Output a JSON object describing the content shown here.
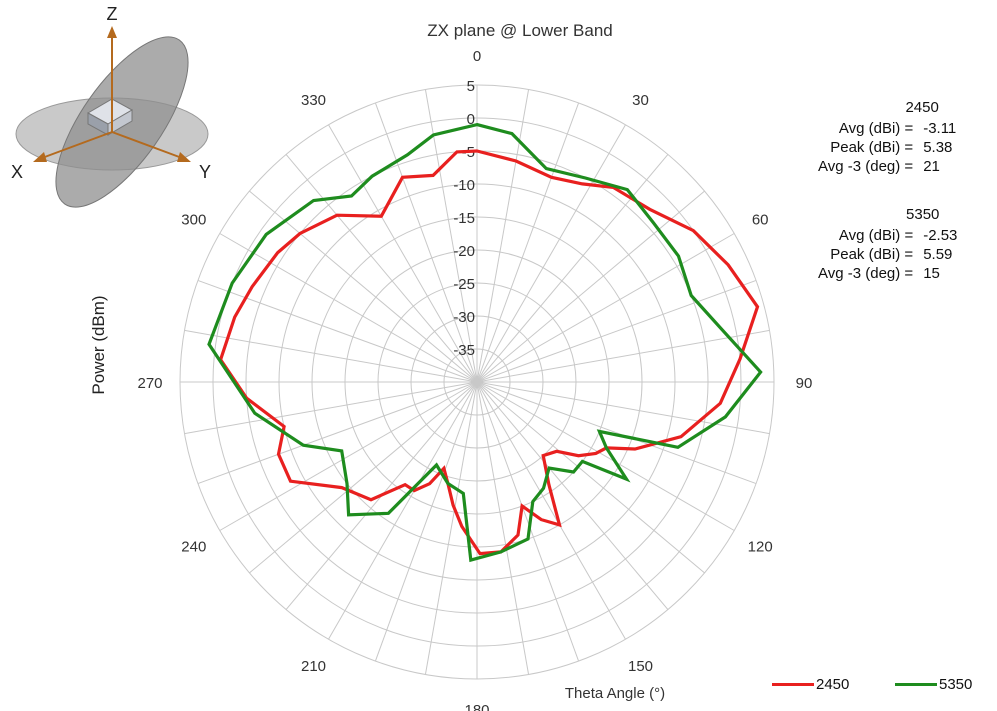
{
  "chart_data": {
    "type": "polar-line",
    "title": "ZX plane @ Lower Band",
    "radial_axis_label": "Power (dBm)",
    "angle_axis_label": "Theta  Angle (°)",
    "r_range": [
      -40,
      5
    ],
    "r_ticks": [
      -35,
      -30,
      -25,
      -20,
      -15,
      -10,
      -5,
      0,
      5
    ],
    "angle_ticks": [
      0,
      30,
      60,
      90,
      120,
      150,
      180,
      210,
      240,
      270,
      300,
      330
    ],
    "angle_direction": "clockwise",
    "zero_angle": "top",
    "legend_position": "bottom-right",
    "series": [
      {
        "name": "2450",
        "color": "#e8201f",
        "points": [
          [
            0,
            -5
          ],
          [
            10,
            -6
          ],
          [
            20,
            -7
          ],
          [
            28,
            -6
          ],
          [
            35,
            -4
          ],
          [
            45,
            -3
          ],
          [
            55,
            0
          ],
          [
            65,
            2
          ],
          [
            75,
            4
          ],
          [
            85,
            0
          ],
          [
            95,
            -3
          ],
          [
            105,
            -8
          ],
          [
            113,
            -14
          ],
          [
            117,
            -18
          ],
          [
            121,
            -19
          ],
          [
            126,
            -21
          ],
          [
            131,
            -24
          ],
          [
            138,
            -25
          ],
          [
            145,
            -21
          ],
          [
            150,
            -15
          ],
          [
            155,
            -17
          ],
          [
            160,
            -20
          ],
          [
            165,
            -16
          ],
          [
            172,
            -14
          ],
          [
            179,
            -14
          ],
          [
            186,
            -18
          ],
          [
            191,
            -21
          ],
          [
            196,
            -24
          ],
          [
            201,
            -26
          ],
          [
            205,
            -23
          ],
          [
            210,
            -21
          ],
          [
            215,
            -21
          ],
          [
            222,
            -16
          ],
          [
            232,
            -14
          ],
          [
            242,
            -8
          ],
          [
            250,
            -8
          ],
          [
            257,
            -10
          ],
          [
            266,
            -5
          ],
          [
            275,
            -1
          ],
          [
            285,
            -2
          ],
          [
            293,
            -3
          ],
          [
            303,
            -4
          ],
          [
            310,
            -5
          ],
          [
            320,
            -7
          ],
          [
            330,
            -11
          ],
          [
            340,
            -7
          ],
          [
            348,
            -8
          ],
          [
            355,
            -5
          ],
          [
            360,
            -5
          ]
        ]
      },
      {
        "name": "5350",
        "color": "#1e8c1e",
        "points": [
          [
            0,
            -1
          ],
          [
            8,
            -2
          ],
          [
            18,
            -6
          ],
          [
            28,
            -5
          ],
          [
            38,
            -3
          ],
          [
            48,
            -4
          ],
          [
            58,
            -4
          ],
          [
            68,
            -5
          ],
          [
            78,
            -2
          ],
          [
            88,
            3
          ],
          [
            98,
            -2
          ],
          [
            108,
            -8
          ],
          [
            112,
            -20
          ],
          [
            117,
            -18
          ],
          [
            123,
            -13
          ],
          [
            127,
            -20
          ],
          [
            133,
            -20
          ],
          [
            140,
            -23
          ],
          [
            148,
            -21
          ],
          [
            155,
            -20
          ],
          [
            162,
            -15
          ],
          [
            172,
            -14
          ],
          [
            182,
            -13
          ],
          [
            187,
            -23
          ],
          [
            196,
            -24
          ],
          [
            206,
            -26
          ],
          [
            214,
            -16
          ],
          [
            224,
            -12
          ],
          [
            232,
            -15
          ],
          [
            243,
            -17
          ],
          [
            250,
            -12
          ],
          [
            262,
            -6
          ],
          [
            278,
            1
          ],
          [
            292,
            0
          ],
          [
            305,
            -1
          ],
          [
            318,
            -3
          ],
          [
            326,
            -6
          ],
          [
            333,
            -5
          ],
          [
            343,
            -4
          ],
          [
            350,
            -2
          ],
          [
            360,
            -1
          ]
        ]
      }
    ],
    "stats": [
      {
        "name": "2450",
        "rows": [
          {
            "label": "Avg (dBi) =",
            "value": "-3.11"
          },
          {
            "label": "Peak (dBi) =",
            "value": "5.38"
          },
          {
            "label": "Avg -3 (deg) =",
            "value": "21"
          }
        ]
      },
      {
        "name": "5350",
        "rows": [
          {
            "label": "Avg (dBi) =",
            "value": "-2.53"
          },
          {
            "label": "Peak (dBi) =",
            "value": "5.59"
          },
          {
            "label": "Avg -3 (deg) =",
            "value": "15"
          }
        ]
      }
    ]
  },
  "axes_icon": {
    "labels": {
      "z": "Z",
      "x": "X",
      "y": "Y"
    }
  },
  "colors": {
    "grid": "#c8c8c8",
    "text": "#333333",
    "axis_arrow": "#b46a1e"
  }
}
